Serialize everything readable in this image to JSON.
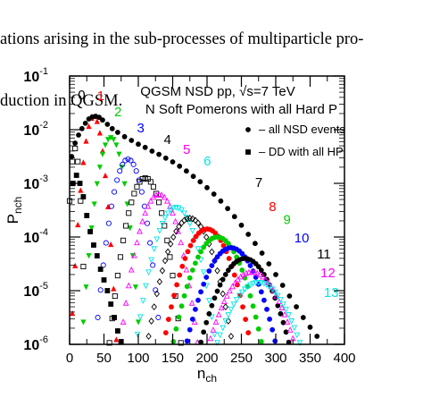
{
  "caption": {
    "line1": "ations arising in the sub-processes of multiparticle pro-",
    "line2": "duction in QGSM."
  },
  "chart_data": {
    "type": "scatter",
    "title": "QGSM    NSD pp, √s=7 TeV",
    "subtitle": "N Soft Pomerons with all Hard P",
    "xlabel": "n_ch",
    "ylabel": "P_nch",
    "xlim": [
      0,
      400
    ],
    "ylim_log10": [
      -6,
      -1
    ],
    "y_scale": "log",
    "x_ticks": [
      "0",
      "50",
      "100",
      "150",
      "200",
      "250",
      "300",
      "350",
      "400"
    ],
    "y_ticks": [
      {
        "base": "10",
        "exp": "-1"
      },
      {
        "base": "10",
        "exp": "-2"
      },
      {
        "base": "10",
        "exp": "-3"
      },
      {
        "base": "10",
        "exp": "-4"
      },
      {
        "base": "10",
        "exp": "-5"
      },
      {
        "base": "10",
        "exp": "-6"
      }
    ],
    "legend": {
      "placement": "top-right",
      "entries": [
        {
          "marker": "circle-filled",
          "label": "– all NSD events"
        },
        {
          "marker": "square-filled",
          "label": "– DD with all HP"
        }
      ]
    },
    "colors": {
      "axis": "#000000",
      "background": "#ffffff"
    },
    "series": [
      {
        "name": "0",
        "label": "0",
        "color": "#000000",
        "marker": "square-open",
        "peak_x": 8,
        "peak_log10": -2.35,
        "width": 6,
        "label_x": 12,
        "label_log10": -1.43
      },
      {
        "name": "1",
        "label": "1",
        "color": "#ff0000",
        "marker": "triangle-filled",
        "peak_x": 35,
        "peak_log10": -1.75,
        "width": 12,
        "label_x": 40,
        "label_log10": -1.45
      },
      {
        "name": "2",
        "label": "2",
        "color": "#00cc00",
        "marker": "triangle-down-filled",
        "peak_x": 60,
        "peak_log10": -2.15,
        "width": 16,
        "label_x": 65,
        "label_log10": -1.75
      },
      {
        "name": "3",
        "label": "3",
        "color": "#0000ff",
        "marker": "circle-open",
        "peak_x": 85,
        "peak_log10": -2.55,
        "width": 19,
        "label_x": 98,
        "label_log10": -2.05
      },
      {
        "name": "4",
        "label": "4",
        "color": "#000000",
        "marker": "square-open",
        "peak_x": 110,
        "peak_log10": -2.9,
        "width": 22,
        "label_x": 137,
        "label_log10": -2.27
      },
      {
        "name": "5",
        "label": "5",
        "color": "#ff00ff",
        "marker": "triangle-open",
        "peak_x": 130,
        "peak_log10": -3.2,
        "width": 25,
        "label_x": 165,
        "label_log10": -2.45
      },
      {
        "name": "6",
        "label": "6",
        "color": "#00e5e5",
        "marker": "triangle-down-open",
        "peak_x": 155,
        "peak_log10": -3.45,
        "width": 27,
        "label_x": 195,
        "label_log10": -2.67
      },
      {
        "name": "7",
        "label": "7",
        "color": "#000000",
        "marker": "diamond-open",
        "peak_x": 175,
        "peak_log10": -3.65,
        "width": 30,
        "label_x": 270,
        "label_log10": -3.07
      },
      {
        "name": "8",
        "label": "8",
        "color": "#ff0000",
        "marker": "circle-filled",
        "peak_x": 200,
        "peak_log10": -3.85,
        "width": 32,
        "label_x": 290,
        "label_log10": -3.52
      },
      {
        "name": "9",
        "label": "9",
        "color": "#00cc00",
        "marker": "circle-filled",
        "peak_x": 215,
        "peak_log10": -4.0,
        "width": 34,
        "label_x": 311,
        "label_log10": -3.76
      },
      {
        "name": "10",
        "label": "10",
        "color": "#0000ff",
        "marker": "circle-filled",
        "peak_x": 235,
        "peak_log10": -4.2,
        "width": 36,
        "label_x": 327,
        "label_log10": -4.1
      },
      {
        "name": "11",
        "label": "11",
        "color": "#000000",
        "marker": "circle-filled",
        "peak_x": 255,
        "peak_log10": -4.4,
        "width": 38,
        "label_x": 360,
        "label_log10": -4.4
      },
      {
        "name": "12",
        "label": "12",
        "color": "#ff00ff",
        "marker": "triangle-open",
        "peak_x": 265,
        "peak_log10": -4.65,
        "width": 40,
        "label_x": 365,
        "label_log10": -4.75
      },
      {
        "name": "13",
        "label": "13",
        "color": "#00e5e5",
        "marker": "triangle-down-open",
        "peak_x": 275,
        "peak_log10": -4.85,
        "width": 42,
        "label_x": 370,
        "label_log10": -5.12
      },
      {
        "name": "all NSD events",
        "label": "",
        "color": "#000000",
        "marker": "circle-filled",
        "points": [
          [
            3,
            -2.5
          ],
          [
            8,
            -2.25
          ],
          [
            13,
            -2.1
          ],
          [
            18,
            -1.98
          ],
          [
            23,
            -1.88
          ],
          [
            28,
            -1.8
          ],
          [
            33,
            -1.76
          ],
          [
            38,
            -1.75
          ],
          [
            43,
            -1.77
          ],
          [
            48,
            -1.82
          ],
          [
            55,
            -1.9
          ],
          [
            62,
            -1.98
          ],
          [
            70,
            -2.05
          ],
          [
            80,
            -2.13
          ],
          [
            90,
            -2.2
          ],
          [
            100,
            -2.27
          ],
          [
            110,
            -2.33
          ],
          [
            120,
            -2.4
          ],
          [
            130,
            -2.46
          ],
          [
            140,
            -2.53
          ],
          [
            150,
            -2.6
          ],
          [
            160,
            -2.68
          ],
          [
            170,
            -2.77
          ],
          [
            180,
            -2.87
          ],
          [
            190,
            -2.97
          ],
          [
            200,
            -3.08
          ],
          [
            210,
            -3.2
          ],
          [
            220,
            -3.33
          ],
          [
            230,
            -3.47
          ],
          [
            240,
            -3.62
          ],
          [
            250,
            -3.78
          ],
          [
            260,
            -3.95
          ],
          [
            270,
            -4.12
          ],
          [
            280,
            -4.3
          ],
          [
            290,
            -4.5
          ],
          [
            300,
            -4.7
          ],
          [
            310,
            -4.9
          ],
          [
            320,
            -5.1
          ],
          [
            330,
            -5.3
          ],
          [
            340,
            -5.5
          ],
          [
            350,
            -5.68
          ],
          [
            360,
            -5.85
          ]
        ]
      },
      {
        "name": "DD with all HP",
        "label": "",
        "color": "#000000",
        "marker": "square-filled",
        "points": [
          [
            5,
            -3.0
          ],
          [
            10,
            -2.85
          ],
          [
            15,
            -3.0
          ],
          [
            20,
            -3.25
          ],
          [
            25,
            -3.6
          ],
          [
            30,
            -3.9
          ],
          [
            35,
            -4.15
          ],
          [
            40,
            -4.35
          ],
          [
            45,
            -4.6
          ],
          [
            50,
            -4.8
          ],
          [
            55,
            -5.0
          ],
          [
            60,
            -5.25
          ],
          [
            65,
            -5.5
          ],
          [
            70,
            -5.75
          ],
          [
            75,
            -5.95
          ]
        ]
      }
    ]
  }
}
